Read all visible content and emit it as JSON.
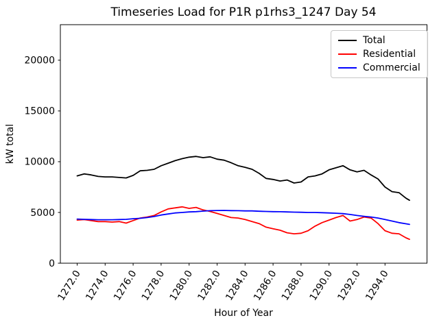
{
  "chart_data": {
    "type": "line",
    "title": "Timeseries Load for P1R p1rhs3_1247  Day 54",
    "xlabel": "Hour of Year",
    "ylabel": "kW total",
    "xlim": [
      1270.8,
      1297.0
    ],
    "ylim": [
      0,
      23500
    ],
    "yticks": [
      0,
      5000,
      10000,
      15000,
      20000
    ],
    "ytick_labels": [
      "0",
      "5000",
      "10000",
      "15000",
      "20000"
    ],
    "xticks": [
      1272,
      1274,
      1276,
      1278,
      1280,
      1282,
      1284,
      1286,
      1288,
      1290,
      1292,
      1294
    ],
    "xtick_labels": [
      "1272.0",
      "1274.0",
      "1276.0",
      "1278.0",
      "1280.0",
      "1282.0",
      "1284.0",
      "1286.0",
      "1288.0",
      "1290.0",
      "1292.0",
      "1294.0"
    ],
    "grid": false,
    "legend": {
      "position": "upper right"
    },
    "x": [
      1272.0,
      1272.5,
      1273.0,
      1273.5,
      1274.0,
      1274.5,
      1275.0,
      1275.5,
      1276.0,
      1276.5,
      1277.0,
      1277.5,
      1278.0,
      1278.5,
      1279.0,
      1279.5,
      1280.0,
      1280.5,
      1281.0,
      1281.5,
      1282.0,
      1282.5,
      1283.0,
      1283.5,
      1284.0,
      1284.5,
      1285.0,
      1285.5,
      1286.0,
      1286.5,
      1287.0,
      1287.5,
      1288.0,
      1288.5,
      1289.0,
      1289.5,
      1290.0,
      1290.5,
      1291.0,
      1291.5,
      1292.0,
      1292.5,
      1293.0,
      1293.5,
      1294.0,
      1294.5,
      1295.0,
      1295.5,
      1295.75
    ],
    "series": [
      {
        "name": "Total",
        "color": "#000000",
        "values": [
          8600,
          8800,
          8700,
          8550,
          8500,
          8500,
          8450,
          8400,
          8650,
          9100,
          9150,
          9250,
          9600,
          9850,
          10100,
          10300,
          10450,
          10520,
          10400,
          10480,
          10250,
          10150,
          9900,
          9600,
          9450,
          9250,
          8850,
          8350,
          8250,
          8100,
          8200,
          7900,
          8000,
          8500,
          8600,
          8800,
          9200,
          9400,
          9600,
          9200,
          9000,
          9150,
          8700,
          8300,
          7500,
          7050,
          6950,
          6400,
          6200
        ]
      },
      {
        "name": "Residential",
        "color": "#ff0000",
        "values": [
          4250,
          4300,
          4200,
          4100,
          4100,
          4050,
          4100,
          3950,
          4200,
          4450,
          4550,
          4700,
          5050,
          5350,
          5450,
          5550,
          5400,
          5500,
          5250,
          5100,
          4900,
          4700,
          4500,
          4450,
          4300,
          4100,
          3900,
          3550,
          3400,
          3250,
          3000,
          2900,
          2950,
          3200,
          3650,
          4000,
          4250,
          4500,
          4700,
          4150,
          4300,
          4550,
          4450,
          3900,
          3200,
          2950,
          2900,
          2500,
          2350
        ]
      },
      {
        "name": "Commercial",
        "color": "#0000ff",
        "values": [
          4350,
          4320,
          4300,
          4280,
          4280,
          4280,
          4300,
          4320,
          4380,
          4420,
          4500,
          4600,
          4750,
          4850,
          4950,
          5000,
          5050,
          5080,
          5130,
          5170,
          5190,
          5200,
          5180,
          5170,
          5150,
          5150,
          5120,
          5100,
          5080,
          5070,
          5050,
          5030,
          5020,
          5000,
          5000,
          4980,
          4950,
          4920,
          4880,
          4800,
          4700,
          4620,
          4550,
          4450,
          4300,
          4150,
          4000,
          3880,
          3820
        ]
      }
    ]
  }
}
